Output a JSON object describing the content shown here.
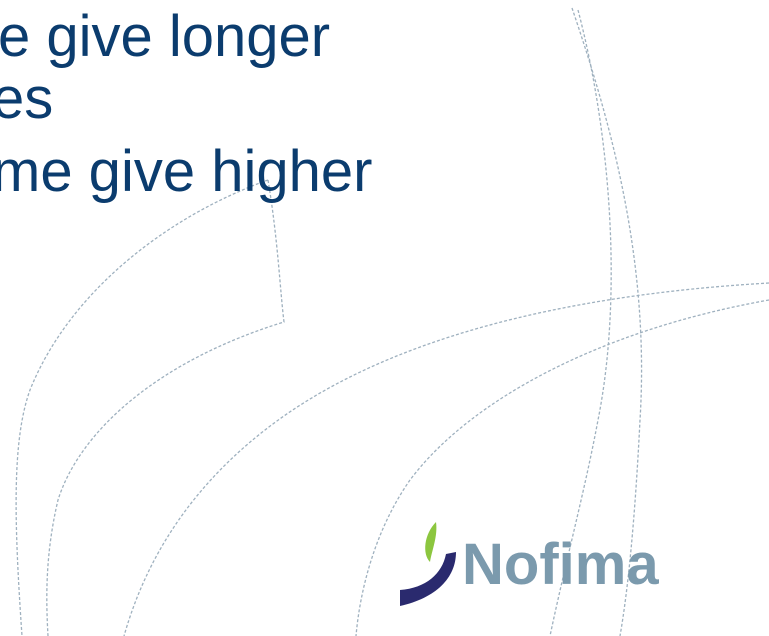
{
  "slide": {
    "lines": [
      "e give longer",
      "es",
      "me give higher"
    ]
  },
  "logo": {
    "name": "Nofima",
    "colors": {
      "wordmark": "#7b9aad",
      "leaf": "#8cc63f",
      "swoosh": "#2a2a6e"
    }
  },
  "colors": {
    "title_text": "#0b3c6e",
    "decorative_lines": "#9fb1bf",
    "background": "#ffffff"
  }
}
